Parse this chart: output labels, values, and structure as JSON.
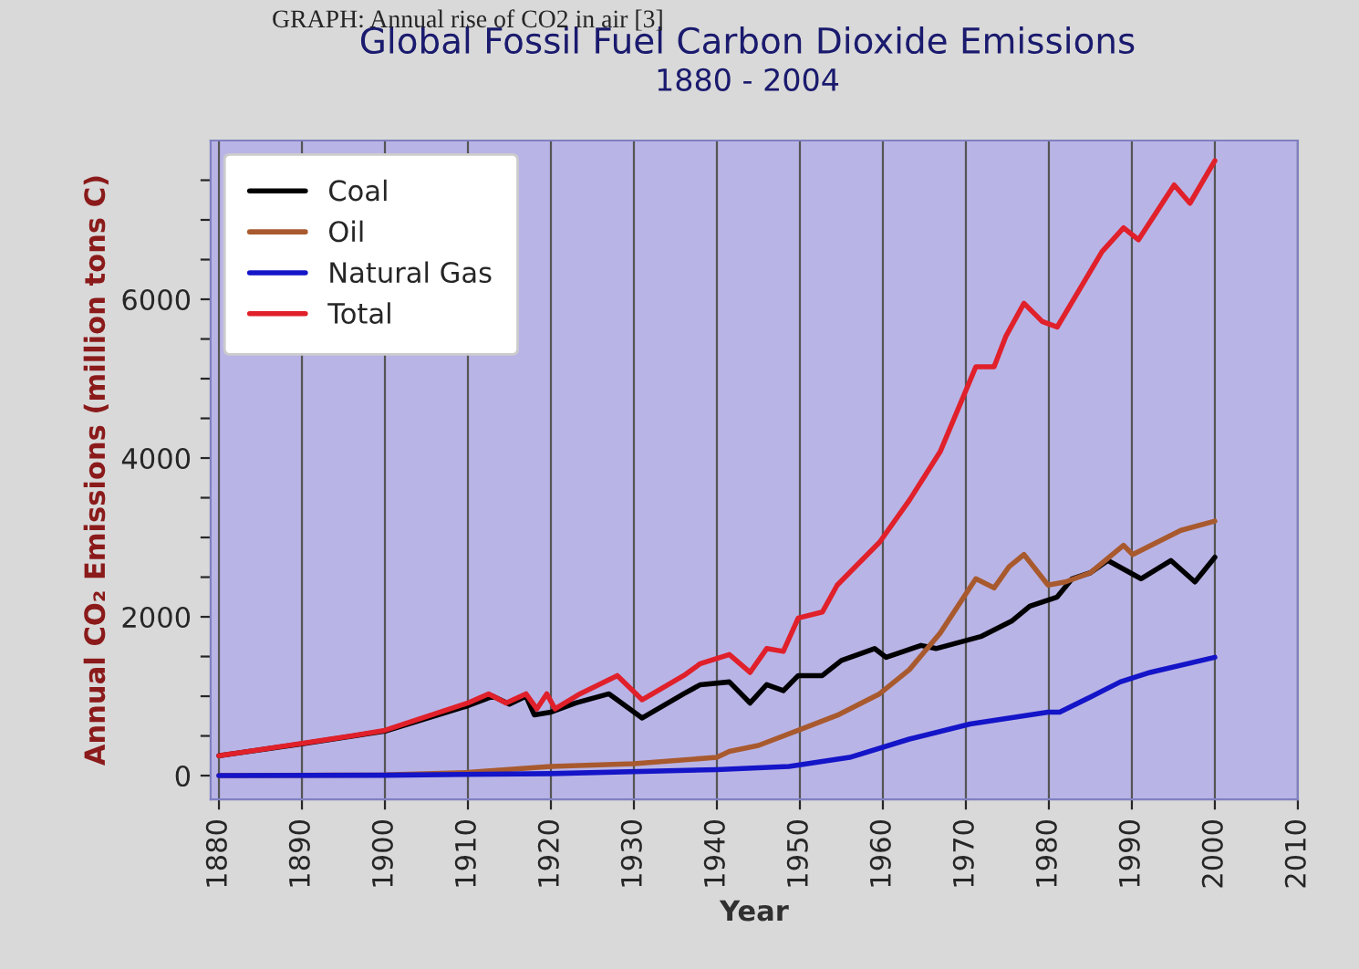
{
  "chart_data": {
    "type": "line",
    "title": "Global Fossil Fuel Carbon Dioxide Emissions",
    "subtitle": "1880 - 2004",
    "xlabel": "Year",
    "ylabel": "Annual CO₂ Emissions (million tons C)",
    "annotations": [
      "GRAPH: Annual rise of CO2 in air [3]"
    ],
    "series": [
      {
        "name": "Coal",
        "color": "#000000",
        "x": [
          1880,
          1890,
          1900,
          1910,
          1913,
          1915,
          1917,
          1918,
          1920,
          1923,
          1927,
          1931,
          1936,
          1938,
          1941.5,
          1944,
          1946,
          1948,
          1949.8,
          1952.7,
          1955,
          1959,
          1960.4,
          1964.6,
          1966.4,
          1971.9,
          1975.5,
          1977.7,
          1981,
          1982.8,
          1985,
          1987.1,
          1991.1,
          1994.7,
          1997.6,
          2000
        ],
        "values": [
          250,
          400,
          560,
          880,
          1000,
          900,
          1000,
          765,
          800,
          915,
          1030,
          725,
          1030,
          1145,
          1180,
          915,
          1145,
          1070,
          1260,
          1260,
          1450,
          1600,
          1490,
          1640,
          1600,
          1755,
          1945,
          2135,
          2250,
          2480,
          2555,
          2710,
          2480,
          2710,
          2440,
          2750
        ]
      },
      {
        "name": "Oil",
        "color": "#a85a2e",
        "x": [
          1880,
          1900,
          1910,
          1920,
          1930,
          1940,
          1941.5,
          1945,
          1949.8,
          1954.5,
          1959.6,
          1963.2,
          1966.9,
          1971.2,
          1973.4,
          1975.2,
          1977,
          1979.9,
          1982,
          1985,
          1989,
          1990.1,
          1995.9,
          2000
        ],
        "values": [
          0,
          10,
          40,
          115,
          150,
          230,
          305,
          380,
          570,
          760,
          1030,
          1335,
          1795,
          2480,
          2365,
          2630,
          2785,
          2400,
          2440,
          2555,
          2900,
          2785,
          3090,
          3205
        ]
      },
      {
        "name": "Natural Gas",
        "color": "#1414c8",
        "x": [
          1880,
          1900,
          1920,
          1940,
          1948.7,
          1956,
          1963.2,
          1970.5,
          1979.9,
          1981.3,
          1985,
          1988.6,
          1992.2,
          2000
        ],
        "values": [
          0,
          5,
          25,
          75,
          115,
          230,
          460,
          650,
          800,
          800,
          990,
          1180,
          1300,
          1490
        ]
      },
      {
        "name": "Total",
        "color": "#e0202a",
        "x": [
          1880,
          1890,
          1896,
          1900,
          1904.5,
          1910,
          1912.5,
          1914.6,
          1917,
          1918.3,
          1919.5,
          1920.5,
          1923.5,
          1928,
          1931,
          1936,
          1938,
          1941.5,
          1944,
          1946,
          1948,
          1949.8,
          1952.7,
          1954.5,
          1959.6,
          1963.2,
          1966.9,
          1971.2,
          1973.4,
          1974.8,
          1977,
          1979.2,
          1981,
          1986.4,
          1989,
          1990.8,
          1995.1,
          1997,
          2000
        ],
        "values": [
          250,
          405,
          500,
          570,
          725,
          915,
          1030,
          915,
          1030,
          840,
          1030,
          840,
          1030,
          1260,
          955,
          1260,
          1410,
          1525,
          1300,
          1600,
          1565,
          1985,
          2060,
          2400,
          2940,
          3470,
          4080,
          5150,
          5150,
          5530,
          5950,
          5720,
          5650,
          6600,
          6900,
          6750,
          7440,
          7210,
          7745
        ]
      }
    ],
    "xlim": [
      1879,
      2010
    ],
    "xticks": [
      1880,
      1890,
      1900,
      1910,
      1920,
      1930,
      1940,
      1950,
      1960,
      1970,
      1980,
      1990,
      2000,
      2010
    ],
    "ylim": [
      -300,
      8000
    ],
    "yticks": [
      0,
      {
        "value": 500,
        "label": null
      },
      {
        "value": 1000,
        "label": null
      },
      {
        "value": 1500,
        "label": null
      },
      2000,
      {
        "value": 2500,
        "label": null
      },
      {
        "value": 3000,
        "label": null
      },
      {
        "value": 3500,
        "label": null
      },
      4000,
      {
        "value": 4500,
        "label": null
      },
      {
        "value": 5000,
        "label": null
      },
      {
        "value": 5500,
        "label": null
      },
      6000,
      {
        "value": 6500,
        "label": null
      },
      {
        "value": 7000,
        "label": null
      },
      {
        "value": 7500,
        "label": null
      }
    ],
    "grid": "x",
    "legend": "top left",
    "marker": "none",
    "line_style": "solid"
  }
}
